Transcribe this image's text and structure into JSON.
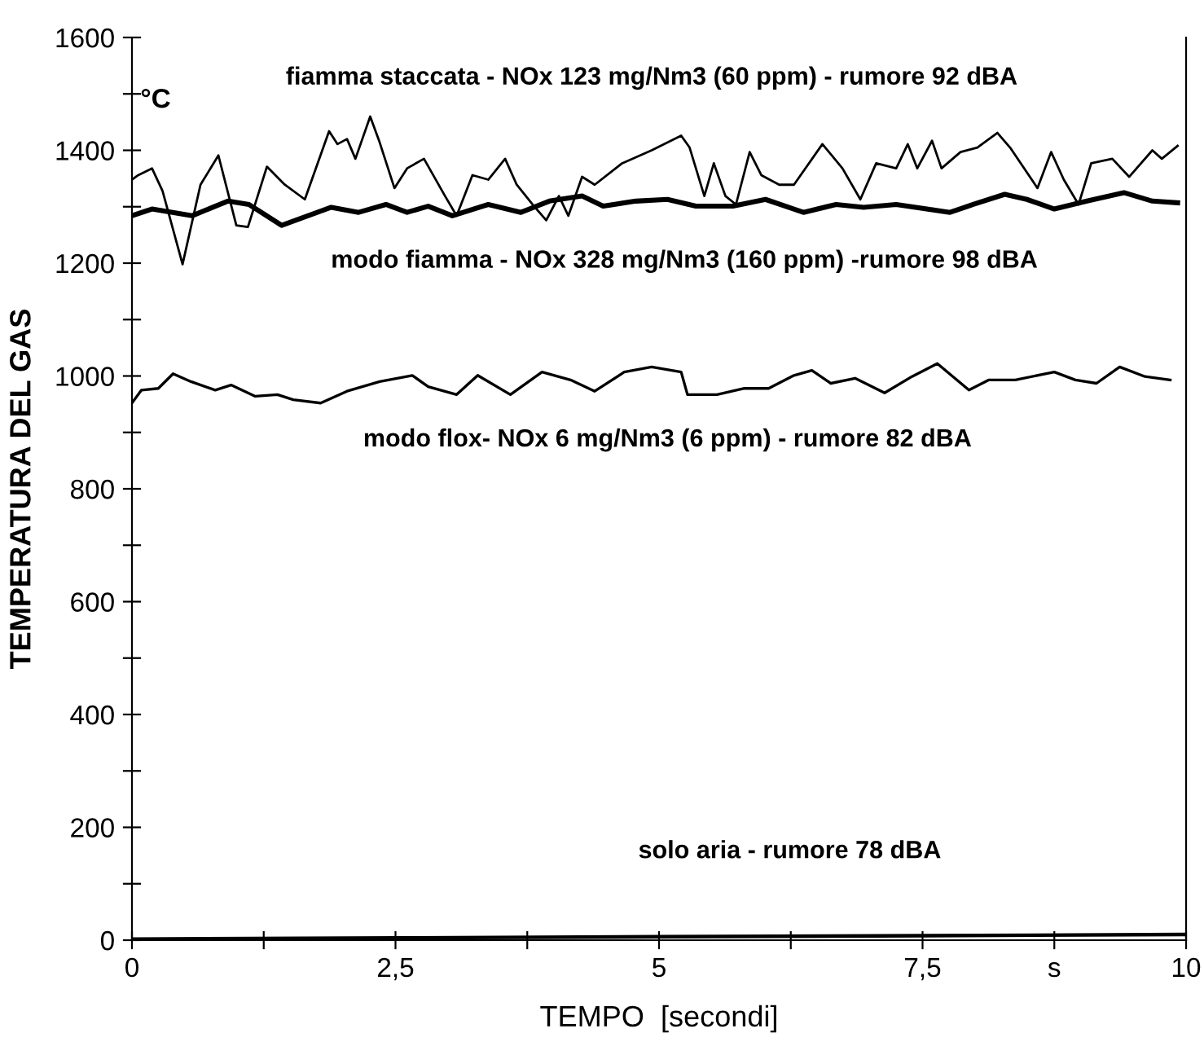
{
  "chart_data": {
    "type": "line",
    "xlabel": "TEMPO  [secondi]",
    "ylabel": "TEMPERATURA DEL GAS",
    "xlim": [
      0,
      10
    ],
    "ylim": [
      0,
      1600
    ],
    "xticks": [
      0,
      {
        "value": 1.25,
        "label": null
      },
      {
        "value": 2.5,
        "label": "2,5"
      },
      {
        "value": 3.75,
        "label": null
      },
      5,
      {
        "value": 6.25,
        "label": null
      },
      {
        "value": 7.5,
        "label": "7,5"
      },
      {
        "value": 8.75,
        "label": "s"
      },
      10
    ],
    "yticks": [
      0,
      {
        "value": 100,
        "label": null
      },
      200,
      {
        "value": 300,
        "label": null
      },
      400,
      {
        "value": 500,
        "label": null
      },
      600,
      {
        "value": 700,
        "label": null
      },
      800,
      {
        "value": 900,
        "label": null
      },
      1000,
      {
        "value": 1100,
        "label": null
      },
      1200,
      {
        "value": 1300,
        "label": null
      },
      1400,
      {
        "value": 1500,
        "label": null
      },
      1600
    ],
    "grid": false,
    "legend": false,
    "marker": "none",
    "line_style": "solid",
    "series": [
      {
        "name": "fiamma staccata - NOx 123 mg/Nm3 (60 ppm) - rumore 92 dBA",
        "color": "#000000",
        "x": [
          0,
          0.06,
          0.19,
          0.29,
          0.48,
          0.65,
          0.82,
          0.99,
          1.1,
          1.28,
          1.45,
          1.64,
          1.87,
          1.95,
          2.04,
          2.12,
          2.26,
          2.35,
          2.49,
          2.61,
          2.77,
          2.97,
          3.08,
          3.23,
          3.38,
          3.54,
          3.65,
          3.8,
          3.93,
          4.05,
          4.14,
          4.27,
          4.39,
          4.65,
          4.93,
          5.21,
          5.29,
          5.43,
          5.52,
          5.63,
          5.73,
          5.86,
          5.97,
          6.14,
          6.28,
          6.55,
          6.74,
          6.91,
          7.06,
          7.25,
          7.36,
          7.45,
          7.59,
          7.68,
          7.86,
          8.02,
          8.21,
          8.33,
          8.59,
          8.72,
          8.84,
          8.98,
          9.1,
          9.3,
          9.46,
          9.68,
          9.77,
          9.92
        ],
        "values": [
          1348,
          1356,
          1368,
          1328,
          1198,
          1339,
          1391,
          1267,
          1264,
          1371,
          1339,
          1313,
          1434,
          1411,
          1420,
          1385,
          1460,
          1414,
          1333,
          1368,
          1385,
          1319,
          1284,
          1356,
          1348,
          1385,
          1339,
          1304,
          1276,
          1319,
          1284,
          1353,
          1339,
          1377,
          1400,
          1426,
          1405,
          1319,
          1377,
          1319,
          1304,
          1397,
          1356,
          1339,
          1339,
          1411,
          1368,
          1313,
          1377,
          1368,
          1411,
          1368,
          1417,
          1368,
          1397,
          1405,
          1431,
          1405,
          1333,
          1397,
          1348,
          1304,
          1377,
          1385,
          1353,
          1400,
          1385,
          1408
        ]
      },
      {
        "name": "modo fiamma - NOx 328 mg/Nm3 (160 ppm) -rumore 98 dBA",
        "color": "#000000",
        "x": [
          0,
          0.19,
          0.57,
          0.91,
          1.11,
          1.42,
          1.89,
          2.15,
          2.41,
          2.61,
          2.81,
          3.04,
          3.38,
          3.69,
          3.96,
          4.27,
          4.47,
          4.78,
          5.08,
          5.35,
          5.7,
          6.01,
          6.37,
          6.68,
          6.94,
          7.25,
          7.76,
          7.98,
          8.28,
          8.49,
          8.75,
          9.06,
          9.41,
          9.68,
          9.92
        ],
        "values": [
          1284,
          1296,
          1284,
          1310,
          1304,
          1267,
          1299,
          1290,
          1304,
          1290,
          1301,
          1284,
          1304,
          1290,
          1310,
          1319,
          1301,
          1310,
          1313,
          1301,
          1301,
          1313,
          1290,
          1304,
          1299,
          1304,
          1290,
          1304,
          1322,
          1313,
          1296,
          1310,
          1325,
          1310,
          1307
        ]
      },
      {
        "name": "modo flox- NOx 6 mg/Nm3 (6 ppm) - rumore 82 dBA",
        "color": "#000000",
        "x": [
          0,
          0.09,
          0.25,
          0.39,
          0.56,
          0.79,
          0.94,
          1.17,
          1.38,
          1.53,
          1.79,
          2.04,
          2.35,
          2.66,
          2.81,
          3.08,
          3.28,
          3.59,
          3.89,
          4.16,
          4.39,
          4.67,
          4.93,
          5.21,
          5.27,
          5.55,
          5.81,
          6.04,
          6.28,
          6.45,
          6.63,
          6.86,
          7.14,
          7.4,
          7.64,
          7.94,
          8.13,
          8.38,
          8.75,
          8.95,
          9.15,
          9.37,
          9.61,
          9.85
        ],
        "values": [
          952,
          975,
          978,
          1004,
          990,
          975,
          984,
          964,
          967,
          958,
          952,
          973,
          990,
          1001,
          981,
          967,
          1001,
          967,
          1007,
          993,
          973,
          1007,
          1016,
          1007,
          967,
          967,
          978,
          978,
          1001,
          1010,
          987,
          996,
          970,
          999,
          1022,
          975,
          993,
          993,
          1007,
          993,
          987,
          1016,
          999,
          993
        ]
      },
      {
        "color": "#000000",
        "x": [
          0,
          2.5,
          5,
          7.5,
          10
        ],
        "values": [
          2,
          4,
          6,
          8,
          10
        ]
      }
    ],
    "annotations": [
      "°C",
      "solo aria - rumore 78 dBA"
    ]
  }
}
